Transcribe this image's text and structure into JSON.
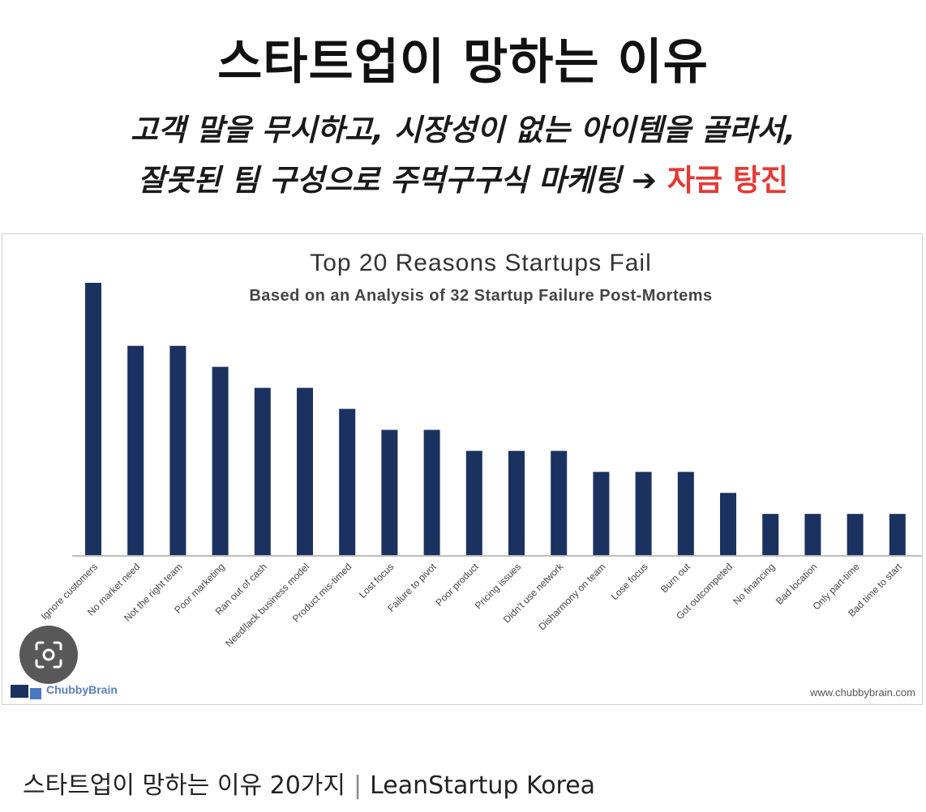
{
  "headline": "스타트업이 망하는 이유",
  "subline_1": "고객 말을 무시하고, 시장성이 없는 아이템을 골라서,",
  "subline_2": {
    "text": "잘못된 팀 구성으로 주먹구구식 마케팅",
    "arrow": "➔",
    "highlight": "자금 탕진",
    "highlight_color": "#e53935"
  },
  "chart_data": {
    "type": "bar",
    "title": "Top 20 Reasons Startups Fail",
    "subtitle": "Based on an Analysis of 32 Startup Failure Post-Mortems",
    "categories": [
      "Ignore customers",
      "No market need",
      "Not the right team",
      "Poor marketing",
      "Ran out of cash",
      "Need/lack business model",
      "Product mis-timed",
      "Lost focus",
      "Failure to pivot",
      "Poor product",
      "Pricing issues",
      "Didn't use network",
      "Disharmony on team",
      "Lose focus",
      "Burn out",
      "Got outcompeted",
      "No financing",
      "Bad location",
      "Only part-time",
      "Bad time to start"
    ],
    "values": [
      13,
      10,
      10,
      9,
      8,
      8,
      7,
      6,
      6,
      5,
      5,
      5,
      4,
      4,
      4,
      3,
      2,
      2,
      2,
      2
    ],
    "ylim": [
      0,
      13
    ],
    "bar_color": "#1b3160",
    "grid": false,
    "logo_text": "ChubbyBrain",
    "source_text": "www.chubbybrain.com"
  },
  "footer": {
    "title": "스타트업이 망하는 이유 20가지",
    "separator": "|",
    "source": "LeanStartup Korea"
  }
}
